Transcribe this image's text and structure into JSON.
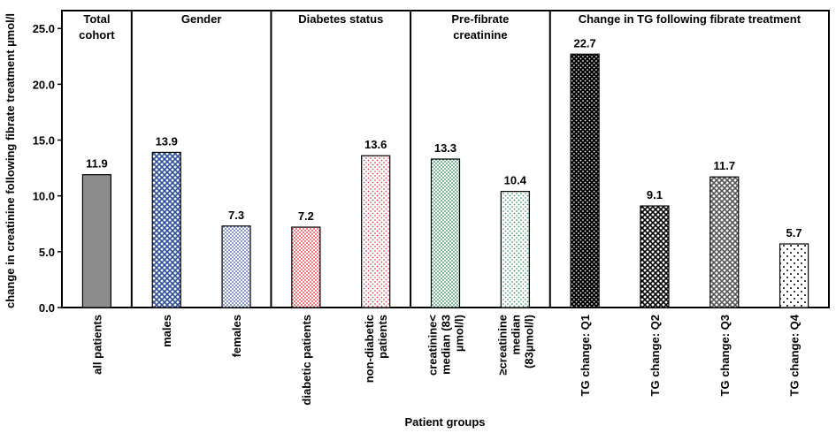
{
  "chart_data": {
    "type": "bar",
    "y_label": "change in creatinine following fibrate treatment µmol/l",
    "x_label": "Patient groups",
    "ylim": [
      0,
      26.6
    ],
    "yticks": [
      {
        "value": 0,
        "label": "0.0"
      },
      {
        "value": 5,
        "label": "5.0"
      },
      {
        "value": 10,
        "label": "10.0"
      },
      {
        "value": 15,
        "label": "15.0"
      },
      {
        "value": 20,
        "label": "20.0"
      },
      {
        "value": 25,
        "label": "25.0"
      }
    ],
    "groups": [
      {
        "title": [
          "Total",
          "cohort"
        ],
        "categories": [
          [
            "all patients"
          ]
        ],
        "values": [
          11.9
        ],
        "colors": [
          "#8c8c8c"
        ],
        "patterns": [
          "solid"
        ]
      },
      {
        "title": [
          "Gender"
        ],
        "categories": [
          [
            "males"
          ],
          [
            "females"
          ]
        ],
        "values": [
          13.9,
          7.3
        ],
        "colors": [
          "#2e4f9e",
          "#2e4f9e"
        ],
        "patterns": [
          "cross",
          "dots"
        ]
      },
      {
        "title": [
          "Diabetes status"
        ],
        "categories": [
          [
            "diabetic patients"
          ],
          [
            "non-diabetic",
            "patients"
          ]
        ],
        "values": [
          7.2,
          13.6
        ],
        "colors": [
          "#e0202a",
          "#e0202a"
        ],
        "patterns": [
          "dots",
          "light-dots"
        ]
      },
      {
        "title": [
          "Pre-fibrate",
          "creatinine"
        ],
        "categories": [
          [
            "creatinine<",
            "median (83",
            "µmol/l)"
          ],
          [
            "≥creatinine",
            "median",
            "(83µmol/l)"
          ]
        ],
        "values": [
          13.3,
          10.4
        ],
        "colors": [
          "#1f8a4a",
          "#1f8a4a"
        ],
        "patterns": [
          "dots",
          "light-dots"
        ]
      },
      {
        "title": [
          "Change in TG following fibrate treatment"
        ],
        "categories": [
          [
            "TG change: Q1"
          ],
          [
            "TG change: Q2"
          ],
          [
            "TG change: Q3"
          ],
          [
            "TG change: Q4"
          ]
        ],
        "values": [
          22.7,
          9.1,
          11.7,
          5.7
        ],
        "colors": [
          "#000000",
          "#000000",
          "#555555",
          "#000000"
        ],
        "patterns": [
          "dense",
          "cross",
          "cross",
          "sparse"
        ]
      }
    ]
  }
}
